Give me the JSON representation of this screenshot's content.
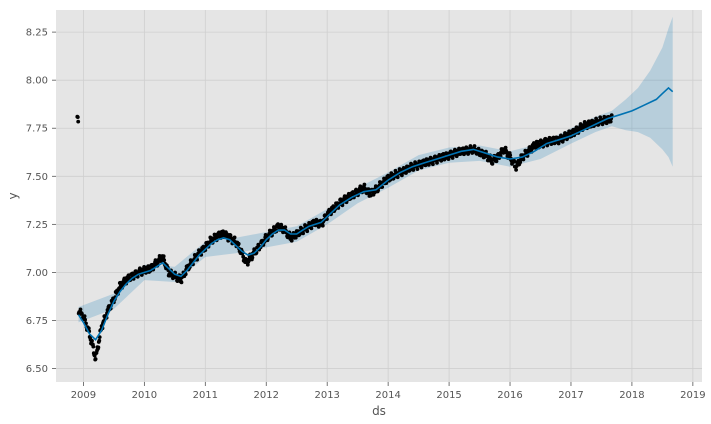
{
  "chart_data": {
    "type": "line",
    "title": "",
    "xlabel": "ds",
    "ylabel": "y",
    "grid": true,
    "xlim": [
      2008.55,
      2019.15
    ],
    "ylim": [
      6.43,
      8.365
    ],
    "x_ticks": [
      2009,
      2010,
      2011,
      2012,
      2013,
      2014,
      2015,
      2016,
      2017,
      2018,
      2019
    ],
    "x_tick_labels": [
      "2009",
      "2010",
      "2011",
      "2012",
      "2013",
      "2014",
      "2015",
      "2016",
      "2017",
      "2018",
      "2019"
    ],
    "y_ticks": [
      6.5,
      6.75,
      7.0,
      7.25,
      7.5,
      7.75,
      8.0,
      8.25
    ],
    "y_tick_labels": [
      "6.50",
      "6.75",
      "7.00",
      "7.25",
      "7.50",
      "7.75",
      "8.00",
      "8.25"
    ],
    "colors": {
      "background": "#e5e5e5",
      "grid": "#cfcfcf",
      "observed": "#000000",
      "forecast": "#0072b2",
      "interval": "#0072b2"
    },
    "observed_range": [
      2008.9,
      2017.67
    ],
    "series": [
      {
        "role": "observed",
        "style": "points",
        "x": [
          2008.92,
          2009.0,
          2009.08,
          2009.15,
          2009.2,
          2009.3,
          2009.4,
          2009.5,
          2009.6,
          2009.7,
          2009.8,
          2009.9,
          2010.0,
          2010.1,
          2010.2,
          2010.3,
          2010.4,
          2010.5,
          2010.6,
          2010.7,
          2010.8,
          2010.9,
          2011.0,
          2011.1,
          2011.2,
          2011.3,
          2011.4,
          2011.5,
          2011.6,
          2011.67,
          2011.75,
          2011.85,
          2012.0,
          2012.1,
          2012.2,
          2012.3,
          2012.4,
          2012.5,
          2012.6,
          2012.7,
          2012.8,
          2012.9,
          2013.0,
          2013.2,
          2013.4,
          2013.5,
          2013.6,
          2013.7,
          2013.8,
          2014.0,
          2014.2,
          2014.4,
          2014.6,
          2014.8,
          2015.0,
          2015.2,
          2015.4,
          2015.6,
          2015.7,
          2015.8,
          2015.9,
          2016.0,
          2016.1,
          2016.2,
          2016.3,
          2016.4,
          2016.6,
          2016.8,
          2017.0,
          2017.2,
          2017.4,
          2017.67
        ],
        "y": [
          6.8,
          6.77,
          6.7,
          6.62,
          6.55,
          6.72,
          6.8,
          6.86,
          6.93,
          6.96,
          6.98,
          7.0,
          7.01,
          7.02,
          7.05,
          7.08,
          7.0,
          6.98,
          6.96,
          7.02,
          7.06,
          7.1,
          7.13,
          7.17,
          7.19,
          7.2,
          7.18,
          7.16,
          7.1,
          7.05,
          7.08,
          7.12,
          7.18,
          7.21,
          7.24,
          7.22,
          7.18,
          7.2,
          7.22,
          7.24,
          7.26,
          7.25,
          7.3,
          7.36,
          7.4,
          7.42,
          7.44,
          7.41,
          7.43,
          7.49,
          7.52,
          7.55,
          7.57,
          7.59,
          7.61,
          7.63,
          7.64,
          7.61,
          7.58,
          7.6,
          7.64,
          7.6,
          7.55,
          7.6,
          7.63,
          7.66,
          7.68,
          7.69,
          7.72,
          7.76,
          7.78,
          7.8
        ]
      },
      {
        "role": "forecast",
        "style": "line",
        "x": [
          2008.92,
          2009.0,
          2009.1,
          2009.2,
          2009.3,
          2009.4,
          2009.5,
          2009.6,
          2009.7,
          2009.8,
          2009.9,
          2010.0,
          2010.1,
          2010.2,
          2010.3,
          2010.4,
          2010.5,
          2010.6,
          2010.7,
          2010.8,
          2010.9,
          2011.0,
          2011.1,
          2011.2,
          2011.3,
          2011.4,
          2011.5,
          2011.6,
          2011.7,
          2011.8,
          2011.9,
          2012.0,
          2012.1,
          2012.2,
          2012.3,
          2012.4,
          2012.5,
          2012.6,
          2012.7,
          2012.8,
          2012.9,
          2013.0,
          2013.2,
          2013.4,
          2013.6,
          2013.8,
          2014.0,
          2014.2,
          2014.4,
          2014.6,
          2014.8,
          2015.0,
          2015.2,
          2015.4,
          2015.6,
          2015.8,
          2016.0,
          2016.2,
          2016.4,
          2016.6,
          2016.8,
          2017.0,
          2017.2,
          2017.4,
          2017.6,
          2017.8,
          2018.0,
          2018.2,
          2018.4,
          2018.5,
          2018.6,
          2018.67
        ],
        "y": [
          6.78,
          6.74,
          6.68,
          6.65,
          6.7,
          6.78,
          6.85,
          6.9,
          6.94,
          6.97,
          6.99,
          7.0,
          7.01,
          7.03,
          7.05,
          7.02,
          6.99,
          6.98,
          7.01,
          7.05,
          7.09,
          7.12,
          7.15,
          7.17,
          7.18,
          7.17,
          7.14,
          7.11,
          7.09,
          7.1,
          7.13,
          7.17,
          7.2,
          7.22,
          7.22,
          7.2,
          7.2,
          7.22,
          7.24,
          7.25,
          7.26,
          7.29,
          7.35,
          7.39,
          7.42,
          7.43,
          7.48,
          7.52,
          7.55,
          7.57,
          7.59,
          7.61,
          7.63,
          7.64,
          7.62,
          7.6,
          7.59,
          7.6,
          7.63,
          7.67,
          7.69,
          7.71,
          7.74,
          7.77,
          7.8,
          7.82,
          7.84,
          7.87,
          7.9,
          7.93,
          7.96,
          7.94
        ]
      },
      {
        "role": "interval",
        "style": "band",
        "x": [
          2008.92,
          2009.5,
          2010.0,
          2010.5,
          2011.0,
          2011.5,
          2012.0,
          2012.5,
          2013.0,
          2013.5,
          2014.0,
          2014.5,
          2015.0,
          2015.5,
          2016.0,
          2016.5,
          2017.0,
          2017.4,
          2017.67,
          2017.9,
          2018.1,
          2018.3,
          2018.5,
          2018.6,
          2018.67
        ],
        "lower": [
          6.74,
          6.81,
          6.96,
          6.95,
          7.08,
          7.1,
          7.13,
          7.16,
          7.25,
          7.36,
          7.44,
          7.53,
          7.57,
          7.58,
          7.55,
          7.59,
          7.67,
          7.73,
          7.76,
          7.74,
          7.73,
          7.7,
          7.64,
          7.6,
          7.55
        ],
        "upper": [
          6.82,
          6.89,
          7.04,
          7.03,
          7.16,
          7.18,
          7.21,
          7.24,
          7.33,
          7.44,
          7.52,
          7.61,
          7.65,
          7.66,
          7.63,
          7.67,
          7.75,
          7.81,
          7.84,
          7.9,
          7.96,
          8.05,
          8.17,
          8.27,
          8.33
        ]
      }
    ]
  }
}
